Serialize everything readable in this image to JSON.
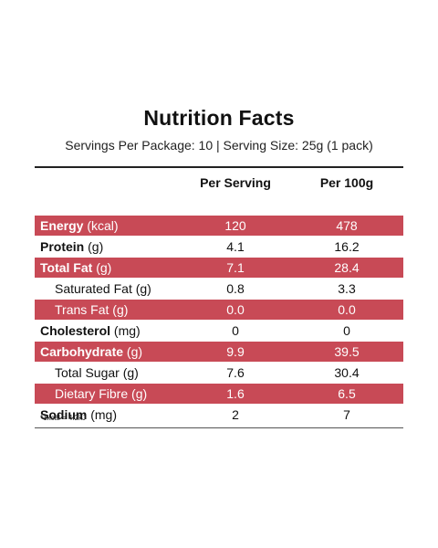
{
  "title": "Nutrition Facts",
  "subtitle": "Servings Per Package: 10 | Serving Size: 25g (1 pack)",
  "columns": {
    "per_serving": "Per Serving",
    "per_100g": "Per 100g"
  },
  "highlight_color": "#c84a56",
  "rows": [
    {
      "name": "Energy",
      "unit": "(kcal)",
      "serving": "120",
      "per100": "478"
    },
    {
      "name": "Protein",
      "unit": "(g)",
      "serving": "4.1",
      "per100": "16.2"
    },
    {
      "name": "Total Fat",
      "unit": "(g)",
      "serving": "7.1",
      "per100": "28.4"
    },
    {
      "name": "Saturated Fat",
      "unit": "(g)",
      "serving": "0.8",
      "per100": "3.3"
    },
    {
      "name": "Trans Fat",
      "unit": "(g)",
      "serving": "0.0",
      "per100": "0.0"
    },
    {
      "name": "Cholesterol",
      "unit": "(mg)",
      "serving": "0",
      "per100": "0"
    },
    {
      "name": "Carbohydrate",
      "unit": "(g)",
      "serving": "9.9",
      "per100": "39.5"
    },
    {
      "name": "Total Sugar",
      "unit": "(g)",
      "serving": "7.6",
      "per100": "30.4"
    },
    {
      "name": "Dietary Fibre",
      "unit": "(g)",
      "serving": "1.6",
      "per100": "6.5"
    },
    {
      "name": "Sodium",
      "unit": "(mg)",
      "serving": "2",
      "per100": "7"
    }
  ],
  "footnote": "*1kcal = 4.2kJ"
}
